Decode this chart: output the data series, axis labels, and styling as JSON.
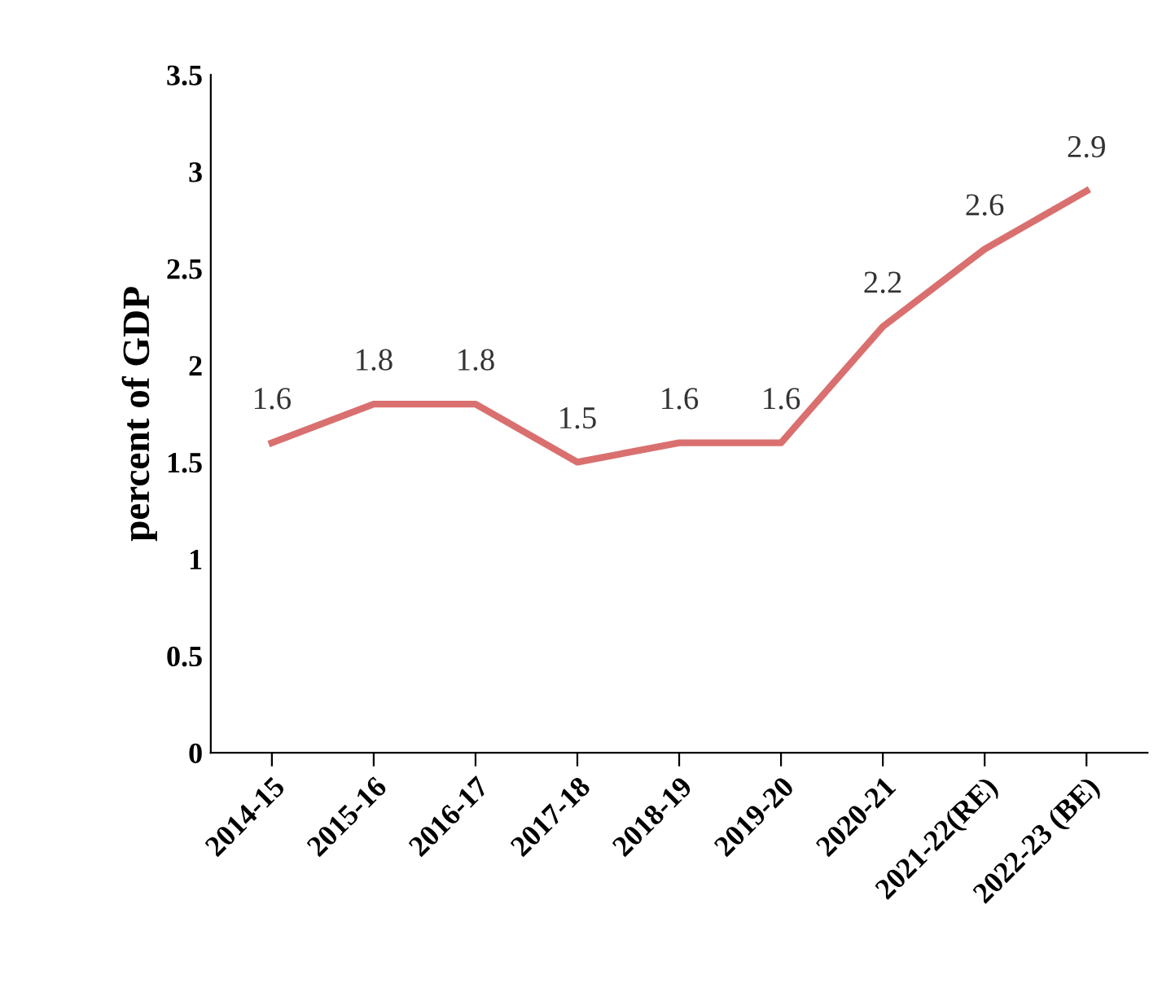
{
  "chart_data": {
    "type": "line",
    "ylabel": "percent of GDP",
    "categories": [
      "2014-15",
      "2015-16",
      "2016-17",
      "2017-18",
      "2018-19",
      "2019-20",
      "2020-21",
      "2021-22(RE)",
      "2022-23 (BE)"
    ],
    "series": [
      {
        "color": "#d9706f",
        "values": [
          1.6,
          1.8,
          1.8,
          1.5,
          1.6,
          1.6,
          2.2,
          2.6,
          2.9
        ]
      }
    ],
    "ylim": [
      0,
      3.5
    ],
    "yticks": [
      0,
      0.5,
      1,
      1.5,
      2,
      2.5,
      3,
      3.5
    ],
    "grid": false,
    "legend": false,
    "marker": "none",
    "line_style": "solid",
    "data_labels": true
  }
}
